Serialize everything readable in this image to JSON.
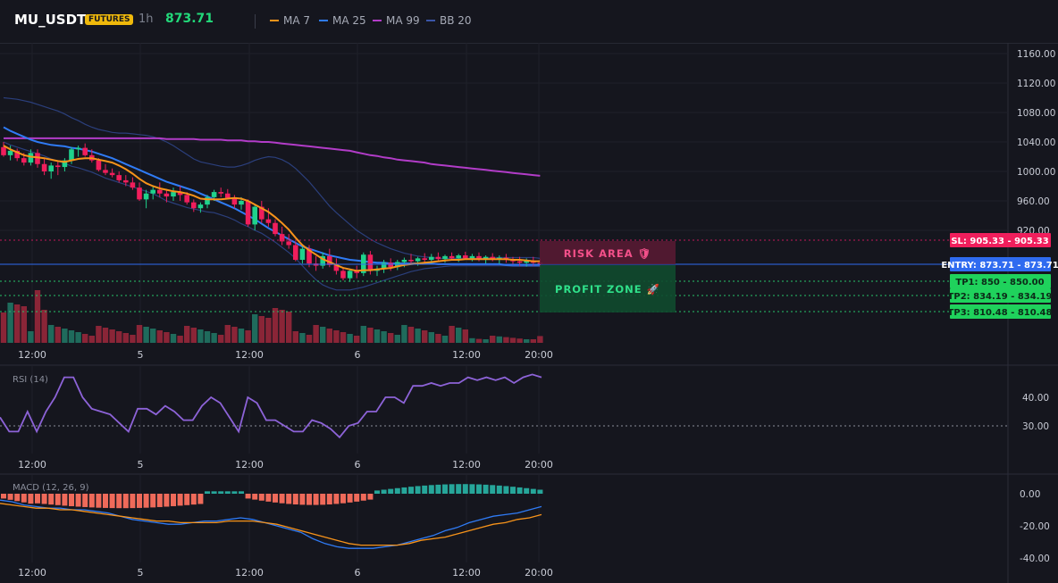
{
  "header": {
    "symbol": "MU_USDT",
    "badge": "FUTURES",
    "interval": "1h",
    "last_price": "873.71",
    "legend": [
      {
        "label": "MA 7",
        "color": "#f7931a"
      },
      {
        "label": "MA 25",
        "color": "#2f7bf5"
      },
      {
        "label": "MA 99",
        "color": "#b23cc8"
      },
      {
        "label": "BB 20",
        "color": "#3a55a8"
      }
    ]
  },
  "colors": {
    "background": "#15161e",
    "up": "#1fd28c",
    "down": "#f01e5c",
    "vol_up": "#1f6b5c",
    "vol_down": "#8a2537",
    "rsi": "#8d63d8",
    "macd": "#2f7bf5",
    "signal": "#f7931a",
    "entry": "#2f6bf0",
    "sl": "#f01e5c",
    "tp": "#1fd25c"
  },
  "chart_data": [
    {
      "type": "candlestick",
      "name": "MU_USDT 1h",
      "x_tick_labels": [
        "12:00",
        "5",
        "12:00",
        "6",
        "12:00",
        "20:00"
      ],
      "y_tick_labels": [
        "1160.00",
        "1120.00",
        "1080.00",
        "1040.00",
        "1000.00",
        "960.00",
        "920.00"
      ],
      "ylim": [
        840,
        1165
      ],
      "ohlc": [
        [
          1033,
          1040,
          1020,
          1022
        ],
        [
          1022,
          1035,
          1015,
          1028
        ],
        [
          1028,
          1031,
          1014,
          1018
        ],
        [
          1018,
          1025,
          1008,
          1012
        ],
        [
          1012,
          1030,
          1008,
          1025
        ],
        [
          1025,
          1030,
          1005,
          1010
        ],
        [
          1010,
          1018,
          995,
          1000
        ],
        [
          1000,
          1012,
          990,
          1008
        ],
        [
          1008,
          1015,
          995,
          1006
        ],
        [
          1006,
          1018,
          1000,
          1015
        ],
        [
          1015,
          1033,
          1010,
          1030
        ],
        [
          1030,
          1035,
          1020,
          1032
        ],
        [
          1032,
          1038,
          1020,
          1022
        ],
        [
          1022,
          1030,
          1012,
          1015
        ],
        [
          1015,
          1018,
          1000,
          1002
        ],
        [
          1002,
          1010,
          995,
          998
        ],
        [
          998,
          1004,
          992,
          995
        ],
        [
          995,
          1000,
          985,
          988
        ],
        [
          988,
          995,
          980,
          985
        ],
        [
          985,
          992,
          975,
          978
        ],
        [
          978,
          985,
          960,
          962
        ],
        [
          962,
          975,
          950,
          970
        ],
        [
          970,
          980,
          962,
          975
        ],
        [
          975,
          985,
          965,
          970
        ],
        [
          970,
          976,
          958,
          966
        ],
        [
          966,
          978,
          960,
          972
        ],
        [
          972,
          980,
          960,
          968
        ],
        [
          968,
          972,
          955,
          958
        ],
        [
          958,
          962,
          945,
          950
        ],
        [
          950,
          958,
          944,
          955
        ],
        [
          955,
          968,
          950,
          965
        ],
        [
          965,
          975,
          960,
          972
        ],
        [
          972,
          978,
          965,
          970
        ],
        [
          970,
          976,
          962,
          964
        ],
        [
          964,
          968,
          950,
          955
        ],
        [
          955,
          965,
          948,
          960
        ],
        [
          960,
          962,
          925,
          928
        ],
        [
          928,
          955,
          920,
          952
        ],
        [
          952,
          960,
          930,
          935
        ],
        [
          935,
          950,
          925,
          930
        ],
        [
          930,
          935,
          912,
          915
        ],
        [
          915,
          925,
          900,
          905
        ],
        [
          905,
          915,
          895,
          900
        ],
        [
          900,
          905,
          878,
          880
        ],
        [
          880,
          898,
          875,
          895
        ],
        [
          895,
          900,
          870,
          875
        ],
        [
          875,
          885,
          865,
          872
        ],
        [
          872,
          890,
          868,
          885
        ],
        [
          885,
          895,
          870,
          873
        ],
        [
          873,
          882,
          860,
          865
        ],
        [
          865,
          870,
          852,
          855
        ],
        [
          855,
          868,
          850,
          865
        ],
        [
          865,
          872,
          855,
          862
        ],
        [
          862,
          890,
          858,
          887
        ],
        [
          887,
          892,
          860,
          865
        ],
        [
          865,
          872,
          858,
          868
        ],
        [
          868,
          880,
          862,
          876
        ],
        [
          876,
          882,
          865,
          870
        ],
        [
          870,
          880,
          866,
          877
        ],
        [
          877,
          883,
          870,
          880
        ],
        [
          880,
          888,
          874,
          878
        ],
        [
          878,
          884,
          872,
          882
        ],
        [
          882,
          889,
          876,
          880
        ],
        [
          880,
          888,
          875,
          884
        ],
        [
          884,
          890,
          878,
          881
        ],
        [
          881,
          887,
          876,
          885
        ],
        [
          885,
          890,
          879,
          882
        ],
        [
          882,
          888,
          877,
          886
        ],
        [
          886,
          891,
          880,
          882
        ],
        [
          882,
          888,
          878,
          885
        ],
        [
          885,
          890,
          878,
          880
        ],
        [
          880,
          886,
          875,
          884
        ],
        [
          884,
          889,
          878,
          881
        ],
        [
          881,
          886,
          874,
          883
        ],
        [
          883,
          888,
          876,
          880
        ],
        [
          880,
          884,
          873,
          878
        ],
        [
          878,
          884,
          872,
          876
        ],
        [
          876,
          882,
          871,
          879
        ],
        [
          879,
          884,
          872,
          876
        ],
        [
          876,
          881,
          870,
          874
        ]
      ],
      "ma7": [
        1035,
        1030,
        1026,
        1022,
        1020,
        1019,
        1018,
        1016,
        1014,
        1013,
        1015,
        1017,
        1018,
        1018,
        1016,
        1014,
        1012,
        1008,
        1003,
        997,
        990,
        984,
        980,
        977,
        975,
        973,
        972,
        970,
        967,
        963,
        962,
        962,
        962,
        963,
        964,
        963,
        960,
        955,
        950,
        945,
        938,
        930,
        921,
        910,
        900,
        893,
        887,
        881,
        877,
        873,
        869,
        867,
        865,
        866,
        866,
        867,
        868,
        869,
        871,
        873,
        874,
        875,
        876,
        877,
        878,
        879,
        880,
        880,
        881,
        881,
        881,
        881,
        881,
        881,
        881,
        880,
        880,
        879,
        878,
        878
      ],
      "ma25": [
        1060,
        1055,
        1051,
        1047,
        1043,
        1040,
        1038,
        1036,
        1035,
        1034,
        1032,
        1031,
        1029,
        1027,
        1024,
        1021,
        1018,
        1014,
        1010,
        1006,
        1002,
        998,
        994,
        990,
        986,
        983,
        980,
        977,
        974,
        970,
        966,
        962,
        958,
        954,
        950,
        945,
        940,
        935,
        929,
        923,
        918,
        913,
        908,
        903,
        898,
        895,
        892,
        889,
        886,
        884,
        882,
        880,
        879,
        878,
        877,
        876,
        876,
        875,
        875,
        875,
        875,
        875,
        875,
        875,
        874,
        874,
        874,
        874,
        874,
        874,
        874,
        874,
        874,
        874,
        873,
        873,
        873,
        873,
        873,
        873
      ],
      "ma99": [
        1045,
        1045,
        1045,
        1045,
        1045,
        1045,
        1045,
        1045,
        1045,
        1045,
        1045,
        1045,
        1045,
        1045,
        1045,
        1045,
        1045,
        1045,
        1045,
        1045,
        1045,
        1045,
        1045,
        1045,
        1044,
        1044,
        1044,
        1044,
        1044,
        1043,
        1043,
        1043,
        1043,
        1042,
        1042,
        1042,
        1041,
        1041,
        1040,
        1040,
        1039,
        1038,
        1037,
        1036,
        1035,
        1034,
        1033,
        1032,
        1031,
        1030,
        1029,
        1028,
        1026,
        1024,
        1022,
        1021,
        1019,
        1018,
        1016,
        1015,
        1014,
        1013,
        1012,
        1010,
        1009,
        1008,
        1007,
        1006,
        1005,
        1004,
        1003,
        1002,
        1001,
        1000,
        999,
        998,
        997,
        996,
        995,
        994
      ],
      "bb_upper": [
        1100,
        1099,
        1098,
        1096,
        1094,
        1091,
        1088,
        1085,
        1082,
        1078,
        1073,
        1069,
        1064,
        1060,
        1057,
        1055,
        1053,
        1052,
        1052,
        1051,
        1050,
        1049,
        1047,
        1044,
        1040,
        1035,
        1029,
        1023,
        1017,
        1013,
        1011,
        1009,
        1007,
        1006,
        1006,
        1008,
        1011,
        1015,
        1018,
        1020,
        1019,
        1016,
        1011,
        1004,
        995,
        986,
        975,
        964,
        953,
        944,
        936,
        928,
        920,
        914,
        908,
        903,
        899,
        895,
        892,
        889,
        887,
        885,
        884,
        883,
        882,
        882,
        882,
        882,
        882,
        882,
        882,
        882,
        883,
        883,
        883,
        883,
        883,
        883,
        883,
        882
      ],
      "bb_lower": [
        1040,
        1036,
        1033,
        1030,
        1027,
        1024,
        1021,
        1017,
        1014,
        1011,
        1007,
        1005,
        1002,
        999,
        995,
        991,
        988,
        985,
        982,
        979,
        976,
        973,
        970,
        965,
        960,
        957,
        954,
        951,
        949,
        947,
        945,
        944,
        941,
        938,
        934,
        929,
        925,
        920,
        916,
        910,
        904,
        897,
        890,
        882,
        872,
        862,
        853,
        846,
        842,
        839,
        839,
        839,
        841,
        843,
        846,
        849,
        852,
        855,
        858,
        861,
        864,
        866,
        868,
        869,
        870,
        871,
        872,
        872,
        872,
        872,
        872,
        872,
        872,
        872,
        872,
        871,
        871,
        871,
        871,
        871
      ],
      "volume_bars": 80,
      "volume_max": 100
    },
    {
      "type": "line",
      "name": "RSI (14)",
      "y_tick_labels": [
        "40.00",
        "30.00"
      ],
      "ylim": [
        20,
        50
      ],
      "reference_line": 30,
      "values": [
        33,
        28,
        28,
        35,
        28,
        35,
        40,
        47,
        47,
        40,
        36,
        35,
        34,
        31,
        28,
        36,
        36,
        34,
        37,
        35,
        32,
        32,
        37,
        40,
        38,
        33,
        28,
        40,
        38,
        32,
        32,
        30,
        28,
        28,
        32,
        31,
        29,
        26,
        30,
        31,
        35,
        35,
        40,
        40,
        38,
        44,
        44,
        45,
        44,
        45,
        45,
        47,
        46,
        47,
        46,
        47,
        45,
        47,
        48,
        47
      ]
    },
    {
      "type": "line",
      "name": "MACD (12, 26, 9)",
      "y_tick_labels": [
        "0.00",
        "-20.00",
        "-40.00"
      ],
      "ylim": [
        -42,
        8
      ],
      "macd": [
        -4,
        -5,
        -7,
        -8,
        -9,
        -9,
        -10,
        -10,
        -11,
        -12,
        -14,
        -16,
        -17,
        -18,
        -19,
        -19,
        -18,
        -17,
        -17,
        -16,
        -15,
        -16,
        -18,
        -20,
        -22,
        -24,
        -28,
        -31,
        -33,
        -34,
        -34,
        -34,
        -33,
        -32,
        -30,
        -28,
        -26,
        -23,
        -21,
        -18,
        -16,
        -14,
        -13,
        -12,
        -10,
        -8
      ],
      "signal": [
        -6,
        -7,
        -8,
        -9,
        -9,
        -10,
        -10,
        -11,
        -12,
        -13,
        -14,
        -15,
        -16,
        -17,
        -17,
        -18,
        -18,
        -18,
        -18,
        -17,
        -17,
        -17,
        -18,
        -19,
        -21,
        -23,
        -25,
        -27,
        -29,
        -31,
        -32,
        -32,
        -32,
        -32,
        -31,
        -29,
        -28,
        -27,
        -25,
        -23,
        -21,
        -19,
        -18,
        -16,
        -15,
        -13
      ],
      "histogram_bars": 80
    }
  ],
  "trade": {
    "sl_label": "SL: 905.33",
    "sl_value": "905.33",
    "entry_label": "ENTRY: 873.71",
    "entry_value": "873.71",
    "tp1_label": "TP1: 850",
    "tp1_value": "850.00",
    "tp2_label": "TP2: 834.19",
    "tp2_value": "834.19",
    "tp3_label": "TP3: 810.48",
    "tp3_value": "810.48",
    "risk_label": "RISK AREA",
    "profit_label": "PROFIT ZONE"
  }
}
